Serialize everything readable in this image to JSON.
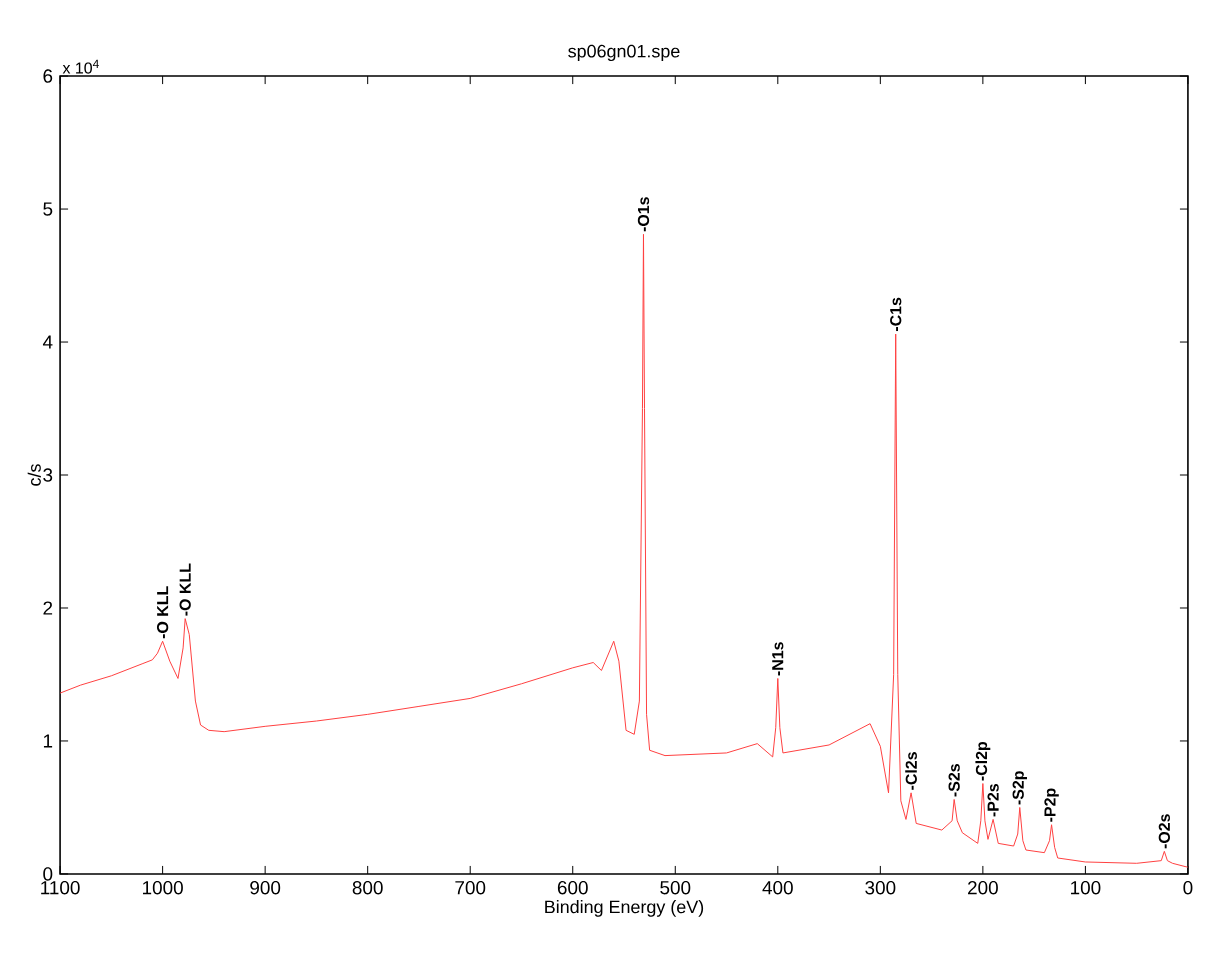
{
  "chart_data": {
    "type": "line",
    "title": "sp06gn01.spe",
    "xlabel": "Binding Energy (eV)",
    "ylabel": "c/s",
    "x": [
      1100,
      1080,
      1050,
      1020,
      1010,
      1005,
      1000,
      993,
      985,
      980,
      978,
      974,
      968,
      963,
      955,
      940,
      900,
      850,
      800,
      750,
      700,
      650,
      600,
      580,
      572,
      560,
      555,
      548,
      540,
      535,
      532,
      531,
      530,
      528,
      525,
      510,
      450,
      420,
      405,
      402,
      400,
      398,
      395,
      350,
      310,
      300,
      292,
      287,
      285,
      283,
      280,
      275,
      270,
      265,
      240,
      230,
      228,
      225,
      220,
      205,
      202,
      200,
      198,
      195,
      190,
      185,
      170,
      166,
      164,
      161,
      158,
      140,
      135,
      133,
      130,
      127,
      100,
      50,
      26,
      23,
      20,
      15,
      0
    ],
    "series": [
      {
        "color": "#ff4040",
        "values": [
          1.36,
          1.42,
          1.49,
          1.58,
          1.61,
          1.66,
          1.75,
          1.6,
          1.47,
          1.7,
          1.92,
          1.8,
          1.3,
          1.12,
          1.08,
          1.07,
          1.11,
          1.15,
          1.2,
          1.26,
          1.32,
          1.43,
          1.55,
          1.59,
          1.53,
          1.75,
          1.6,
          1.08,
          1.05,
          1.3,
          3.5,
          4.81,
          3.5,
          1.2,
          0.93,
          0.89,
          0.91,
          0.98,
          0.88,
          1.1,
          1.47,
          1.1,
          0.91,
          0.97,
          1.13,
          0.96,
          0.61,
          1.5,
          4.06,
          1.5,
          0.55,
          0.41,
          0.61,
          0.38,
          0.33,
          0.4,
          0.56,
          0.4,
          0.31,
          0.23,
          0.4,
          0.68,
          0.4,
          0.26,
          0.41,
          0.23,
          0.21,
          0.3,
          0.5,
          0.25,
          0.18,
          0.16,
          0.25,
          0.37,
          0.2,
          0.12,
          0.09,
          0.08,
          0.1,
          0.17,
          0.1,
          0.08,
          0.05
        ]
      }
    ],
    "xlim": [
      1100,
      0
    ],
    "ylim": [
      0,
      6
    ],
    "xticks": [
      1100,
      1000,
      900,
      800,
      700,
      600,
      500,
      400,
      300,
      200,
      100,
      0
    ],
    "yticks": [
      0,
      1,
      2,
      3,
      4,
      5,
      6
    ],
    "annotations": [
      "x 10$^{4}$",
      {
        "text": "-O KLL",
        "x": 1000,
        "y": 1.75
      },
      {
        "text": "-O KLL",
        "x": 978,
        "y": 1.92
      },
      {
        "text": "-O1s",
        "x": 531,
        "y": 4.81
      },
      {
        "text": "-N1s",
        "x": 400,
        "y": 1.47
      },
      {
        "text": "-C1s",
        "x": 285,
        "y": 4.06
      },
      {
        "text": "-Cl2s",
        "x": 270,
        "y": 0.61
      },
      {
        "text": "-S2s",
        "x": 228,
        "y": 0.56
      },
      {
        "text": "-Cl2p",
        "x": 200,
        "y": 0.68
      },
      {
        "text": "-P2s",
        "x": 190,
        "y": 0.41
      },
      {
        "text": "-S2p",
        "x": 164,
        "y": 0.5
      },
      {
        "text": "-P2p",
        "x": 133,
        "y": 0.37
      },
      {
        "text": "-O2s",
        "x": 23,
        "y": 0.17
      }
    ]
  }
}
